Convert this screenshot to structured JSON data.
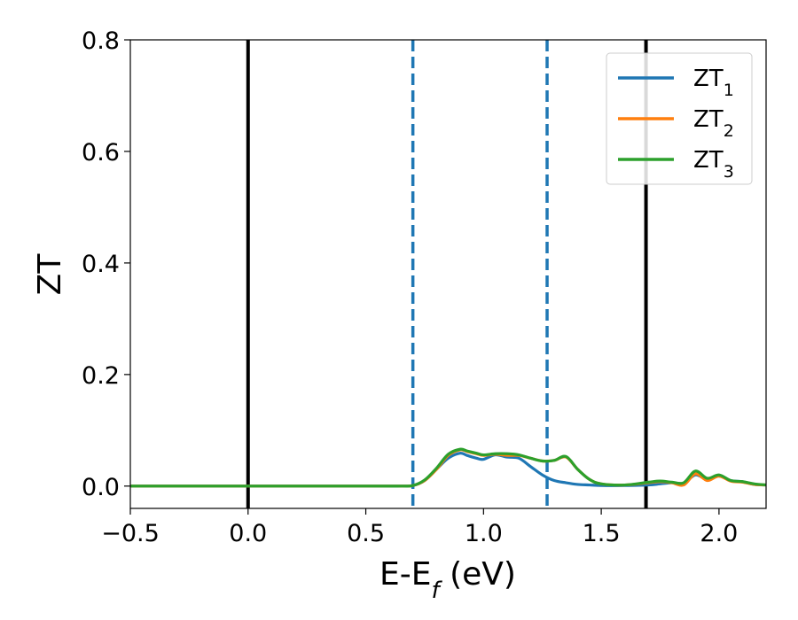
{
  "chart_data": {
    "type": "line",
    "title": "",
    "xlabel": "E-E",
    "xlabel_sub": "f",
    "xlabel_unit": " (eV)",
    "ylabel": "ZT",
    "xlim": [
      -0.5,
      2.2
    ],
    "ylim": [
      -0.04,
      0.8
    ],
    "x_ticks": [
      -0.5,
      0.0,
      0.5,
      1.0,
      1.5,
      2.0
    ],
    "x_tick_labels": [
      "−0.5",
      "0.0",
      "0.5",
      "1.0",
      "1.5",
      "2.0"
    ],
    "y_ticks": [
      0.0,
      0.2,
      0.4,
      0.6,
      0.8
    ],
    "y_tick_labels": [
      "0.0",
      "0.2",
      "0.4",
      "0.6",
      "0.8"
    ],
    "grid": false,
    "legend_position": "top-right",
    "vertical_lines": [
      {
        "x": 0.0,
        "style": "solid",
        "color": "#000000"
      },
      {
        "x": 1.69,
        "style": "solid",
        "color": "#000000"
      },
      {
        "x": 0.7,
        "style": "dashed",
        "color": "#1f77b4"
      },
      {
        "x": 1.27,
        "style": "dashed",
        "color": "#1f77b4"
      }
    ],
    "series": [
      {
        "name": "ZT",
        "name_sub": "1",
        "color": "#1f77b4",
        "x": [
          -0.5,
          0.0,
          0.5,
          0.65,
          0.7,
          0.75,
          0.8,
          0.85,
          0.9,
          0.93,
          0.97,
          1.0,
          1.05,
          1.1,
          1.15,
          1.2,
          1.25,
          1.3,
          1.35,
          1.4,
          1.45,
          1.5,
          1.6,
          1.7,
          1.75,
          1.8,
          1.85,
          1.9,
          1.95,
          2.0,
          2.05,
          2.1,
          2.15,
          2.2
        ],
        "y": [
          0.0,
          0.0,
          0.0,
          0.0,
          0.001,
          0.01,
          0.03,
          0.05,
          0.059,
          0.055,
          0.05,
          0.048,
          0.056,
          0.052,
          0.05,
          0.035,
          0.02,
          0.01,
          0.006,
          0.003,
          0.002,
          0.001,
          0.001,
          0.002,
          0.004,
          0.006,
          0.005,
          0.02,
          0.012,
          0.018,
          0.01,
          0.008,
          0.003,
          0.002
        ]
      },
      {
        "name": "ZT",
        "name_sub": "2",
        "color": "#ff7f0e",
        "x": [
          -0.5,
          0.0,
          0.5,
          0.65,
          0.7,
          0.75,
          0.8,
          0.85,
          0.9,
          0.93,
          0.97,
          1.0,
          1.05,
          1.1,
          1.15,
          1.2,
          1.25,
          1.3,
          1.35,
          1.4,
          1.45,
          1.5,
          1.6,
          1.7,
          1.75,
          1.8,
          1.85,
          1.9,
          1.95,
          2.0,
          2.05,
          2.1,
          2.15,
          2.2
        ],
        "y": [
          0.0,
          0.0,
          0.0,
          0.0,
          0.001,
          0.01,
          0.03,
          0.055,
          0.065,
          0.062,
          0.058,
          0.055,
          0.057,
          0.055,
          0.055,
          0.05,
          0.045,
          0.046,
          0.052,
          0.03,
          0.012,
          0.004,
          0.002,
          0.006,
          0.008,
          0.006,
          0.002,
          0.022,
          0.01,
          0.018,
          0.009,
          0.007,
          0.003,
          0.002
        ]
      },
      {
        "name": "ZT",
        "name_sub": "3",
        "color": "#2ca02c",
        "x": [
          -0.5,
          0.0,
          0.5,
          0.65,
          0.7,
          0.75,
          0.8,
          0.85,
          0.9,
          0.93,
          0.97,
          1.0,
          1.05,
          1.1,
          1.15,
          1.2,
          1.25,
          1.3,
          1.35,
          1.4,
          1.45,
          1.5,
          1.6,
          1.7,
          1.75,
          1.8,
          1.85,
          1.9,
          1.95,
          2.0,
          2.05,
          2.1,
          2.15,
          2.2
        ],
        "y": [
          0.0,
          0.0,
          0.0,
          0.0,
          0.001,
          0.011,
          0.032,
          0.057,
          0.066,
          0.063,
          0.059,
          0.056,
          0.058,
          0.058,
          0.056,
          0.05,
          0.045,
          0.046,
          0.053,
          0.03,
          0.012,
          0.004,
          0.002,
          0.007,
          0.009,
          0.007,
          0.006,
          0.027,
          0.014,
          0.02,
          0.01,
          0.008,
          0.004,
          0.002
        ]
      }
    ]
  }
}
